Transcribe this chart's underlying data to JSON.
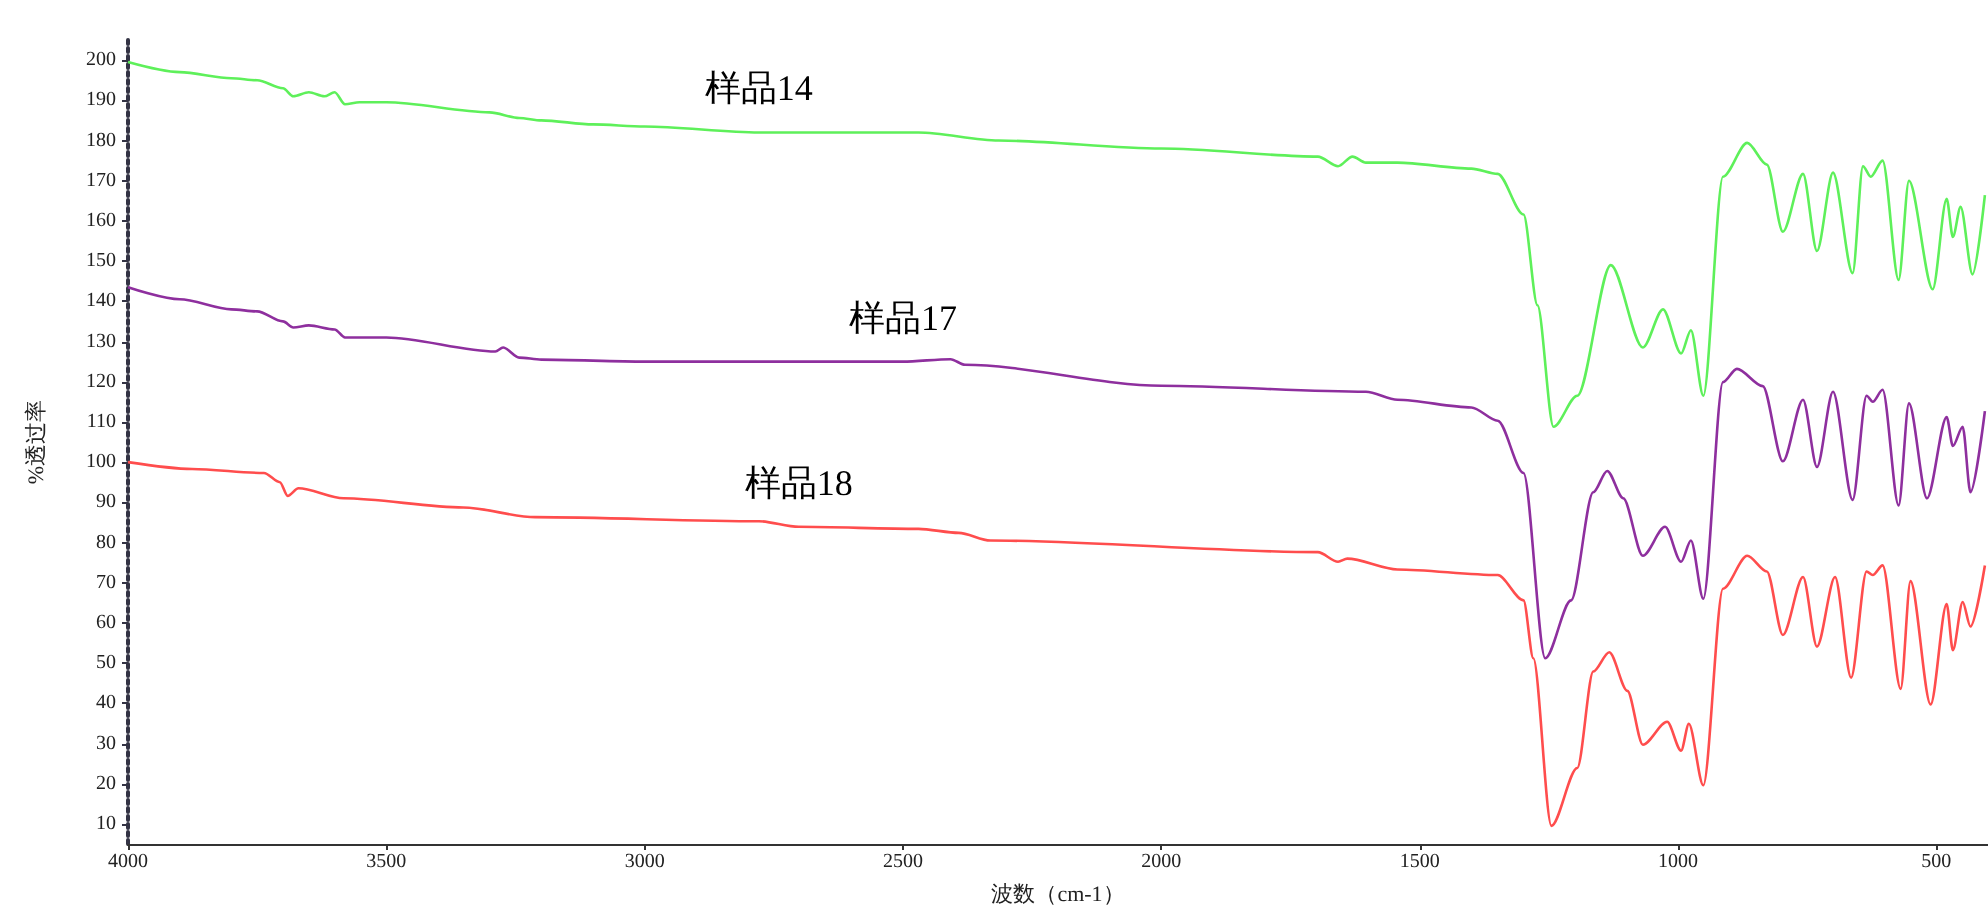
{
  "chart_data": {
    "type": "line",
    "xlabel": "波数（cm-1）",
    "ylabel": "%透过率",
    "xlim": [
      4000,
      400
    ],
    "xticks": [
      4000,
      3500,
      3000,
      2500,
      2000,
      1500,
      1000,
      500
    ],
    "ylim": [
      5,
      205
    ],
    "yticks": [
      10,
      20,
      30,
      40,
      50,
      60,
      70,
      80,
      90,
      100,
      110,
      120,
      130,
      140,
      150,
      160,
      170,
      180,
      190,
      200
    ],
    "grid": false,
    "legend": false,
    "marker": "none",
    "line_style": "solid",
    "series": [
      {
        "name": "样品14",
        "color": "#5ef05a",
        "x": [
          4000,
          3900,
          3800,
          3750,
          3700,
          3680,
          3650,
          3620,
          3600,
          3580,
          3552,
          3500,
          3300,
          3243,
          3200,
          3100,
          3000,
          2779,
          2470,
          2315,
          2000,
          1697,
          1658,
          1630,
          1604,
          1543,
          1400,
          1349,
          1299,
          1272,
          1241,
          1195,
          1130,
          1068,
          1029,
          994,
          975,
          951,
          913,
          866,
          828,
          797,
          758,
          731,
          700,
          662,
          642,
          627,
          604,
          573,
          553,
          507,
          480,
          468,
          453,
          430,
          406
        ],
        "values": [
          199.5,
          197,
          195.5,
          195,
          193,
          191,
          192,
          191,
          192,
          189,
          189.5,
          189.5,
          187,
          185.6,
          185,
          184,
          183.5,
          182,
          182,
          180,
          178,
          176,
          173.6,
          176,
          174.5,
          174.5,
          173,
          171.7,
          161.6,
          139,
          108.8,
          116.5,
          149,
          128.5,
          138,
          127,
          132.8,
          116.5,
          171,
          179.4,
          174,
          157.3,
          171.7,
          152.5,
          172,
          147,
          173.6,
          171,
          175,
          145.3,
          170,
          143,
          165.5,
          156,
          163.5,
          146.7,
          166.4
        ]
      },
      {
        "name": "样品17",
        "color": "#8e2f9e",
        "x": [
          4000,
          3900,
          3800,
          3750,
          3700,
          3680,
          3650,
          3600,
          3580,
          3500,
          3289,
          3274,
          3243,
          3200,
          3000,
          2500,
          2408,
          2380,
          2000,
          1604,
          1543,
          1400,
          1349,
          1299,
          1257,
          1207,
          1164,
          1137,
          1106,
          1068,
          1025,
          994,
          975,
          951,
          913,
          886,
          836,
          797,
          758,
          731,
          700,
          662,
          635,
          623,
          604,
          573,
          553,
          518,
          480,
          468,
          449,
          434,
          406
        ],
        "values": [
          143.5,
          140.5,
          138,
          137.5,
          135,
          133.5,
          134,
          133,
          131,
          131,
          127.5,
          128.5,
          126,
          125.5,
          125,
          125,
          125.6,
          124.2,
          119,
          117.5,
          115.5,
          113.6,
          110.3,
          97.3,
          51.2,
          65.6,
          92.5,
          97.8,
          91,
          76.7,
          83.9,
          75.2,
          80.5,
          66,
          119.9,
          123.2,
          118.9,
          100.2,
          115.5,
          98.8,
          117.5,
          90.6,
          116.5,
          115,
          118,
          89.2,
          114.6,
          91,
          111.2,
          104,
          108.8,
          92.5,
          112.7
        ]
      },
      {
        "name": "样品18",
        "color": "#ff4d4d",
        "x": [
          4000,
          3876,
          3737,
          3706,
          3691,
          3670,
          3583,
          3351,
          3212,
          2779,
          2702,
          2470,
          2392,
          2331,
          1697,
          1658,
          1640,
          1543,
          1349,
          1299,
          1280,
          1245,
          1195,
          1164,
          1133,
          1098,
          1068,
          1021,
          994,
          979,
          951,
          913,
          866,
          828,
          797,
          758,
          731,
          696,
          665,
          635,
          623,
          604,
          569,
          550,
          511,
          480,
          468,
          449,
          434,
          406
        ],
        "values": [
          100,
          98.3,
          97.3,
          95,
          91.6,
          93.5,
          91,
          88.7,
          86.3,
          85.3,
          83.9,
          83.4,
          82.4,
          80.5,
          77.6,
          75.2,
          76,
          73.3,
          71.9,
          65.6,
          51.2,
          9.5,
          23.9,
          47.9,
          52.7,
          43.1,
          29.7,
          35.4,
          28.2,
          34.9,
          19.6,
          68.5,
          76.7,
          72.8,
          57,
          71.4,
          54.1,
          71.4,
          46.4,
          72.8,
          71.9,
          74.3,
          43.6,
          70.4,
          39.7,
          64.7,
          53.2,
          65.2,
          59.1,
          74.3
        ]
      }
    ]
  }
}
